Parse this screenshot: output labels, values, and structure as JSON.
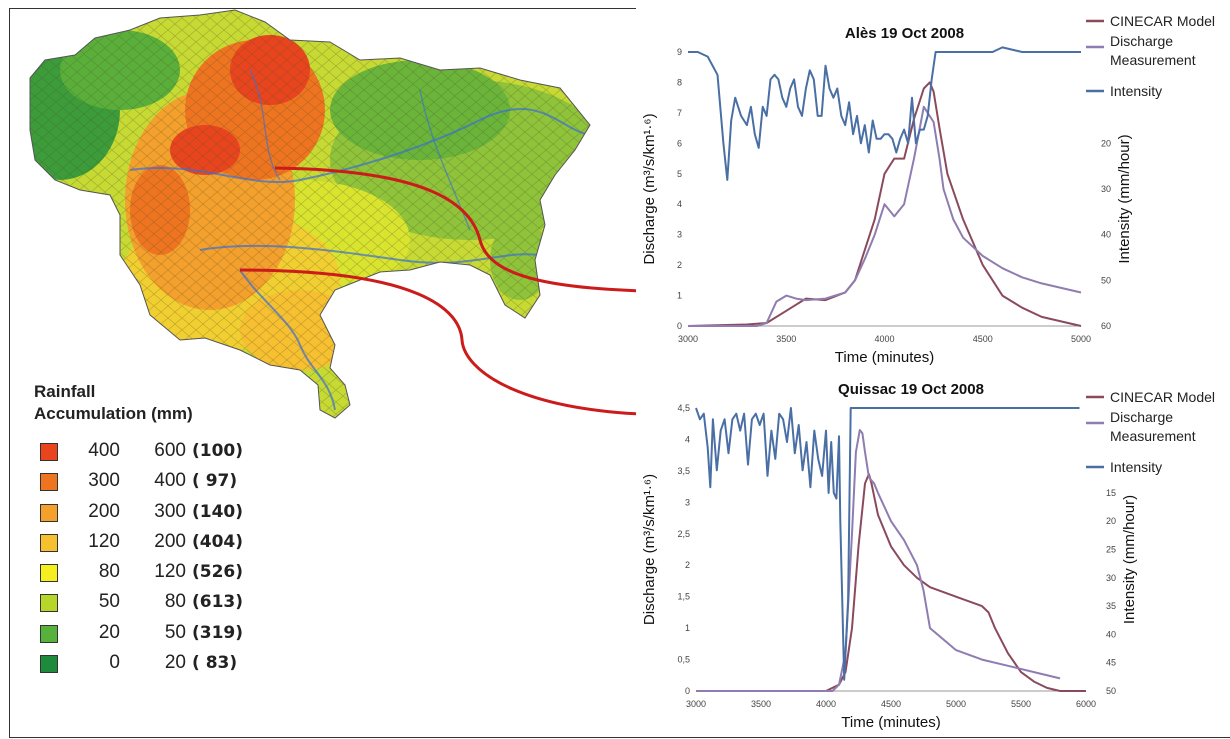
{
  "legend": {
    "title_line1": "Rainfall",
    "title_line2": "Accumulation  (mm)",
    "items": [
      {
        "low": "400",
        "high": "600",
        "count": "(100)",
        "color": "#e8451e"
      },
      {
        "low": "300",
        "high": "400",
        "count": "( 97)",
        "color": "#ee7420"
      },
      {
        "low": "200",
        "high": "300",
        "count": "(140)",
        "color": "#f4a02c"
      },
      {
        "low": "120",
        "high": "200",
        "count": "(404)",
        "color": "#f7c030"
      },
      {
        "low": "80",
        "high": "120",
        "count": "(526)",
        "color": "#f5ef20"
      },
      {
        "low": "50",
        "high": "80",
        "count": "(613)",
        "color": "#b7d62a"
      },
      {
        "low": "20",
        "high": "50",
        "count": "(319)",
        "color": "#57b13a"
      },
      {
        "low": "0",
        "high": "20",
        "count": "( 83)",
        "color": "#1e8a3c"
      }
    ]
  },
  "chart_data": [
    {
      "type": "line",
      "title": "Alès 19 Oct 2008",
      "xlabel": "Time (minutes)",
      "ylabel": "Discharge (m³/s/km¹·⁶)",
      "y2label": "Intensity  (mm/hour)",
      "xlim": [
        3000,
        5000
      ],
      "ylim": [
        0,
        9
      ],
      "y2lim": [
        0,
        60
      ],
      "y2_inverted": true,
      "xticks": [
        "3000",
        "3500",
        "4000",
        "4500",
        "5000"
      ],
      "yticks": [
        "0",
        "1",
        "2",
        "3",
        "4",
        "5",
        "6",
        "7",
        "8",
        "9"
      ],
      "y2ticks": [
        "20",
        "30",
        "40",
        "50",
        "60"
      ],
      "legend_position": "top-right",
      "series": [
        {
          "name": "CINECAR Model",
          "color": "#8b4a5c",
          "axis": "y",
          "x": [
            3000,
            3300,
            3400,
            3500,
            3550,
            3600,
            3700,
            3800,
            3850,
            3900,
            3950,
            4000,
            4050,
            4100,
            4150,
            4200,
            4230,
            4250,
            4280,
            4320,
            4400,
            4500,
            4600,
            4700,
            4800,
            5000
          ],
          "y": [
            0,
            0.05,
            0.1,
            0.5,
            0.7,
            0.9,
            0.85,
            1.1,
            1.5,
            2.5,
            3.5,
            5.0,
            5.5,
            5.5,
            6.8,
            7.8,
            8.0,
            7.7,
            6.5,
            5.0,
            3.5,
            2.0,
            1.0,
            0.6,
            0.3,
            0
          ]
        },
        {
          "name": "Discharge Measurement",
          "color": "#8f7cb0",
          "axis": "y",
          "x": [
            3000,
            3350,
            3400,
            3450,
            3500,
            3550,
            3600,
            3700,
            3800,
            3850,
            3900,
            3950,
            4000,
            4050,
            4100,
            4150,
            4200,
            4250,
            4280,
            4300,
            4350,
            4400,
            4450,
            4500,
            4600,
            4700,
            4800,
            5000
          ],
          "y": [
            0,
            0,
            0.1,
            0.8,
            1.0,
            0.9,
            0.85,
            0.9,
            1.1,
            1.5,
            2.2,
            3.0,
            4.0,
            3.6,
            4.0,
            5.5,
            7.2,
            6.7,
            5.5,
            4.5,
            3.5,
            2.9,
            2.6,
            2.3,
            1.9,
            1.6,
            1.4,
            1.1
          ]
        },
        {
          "name": "Intensity",
          "color": "#4a6fa5",
          "axis": "y2",
          "x": [
            3000,
            3050,
            3100,
            3150,
            3180,
            3200,
            3220,
            3240,
            3270,
            3300,
            3320,
            3340,
            3360,
            3380,
            3400,
            3420,
            3440,
            3460,
            3480,
            3500,
            3520,
            3540,
            3560,
            3580,
            3600,
            3620,
            3640,
            3660,
            3680,
            3700,
            3720,
            3740,
            3760,
            3780,
            3800,
            3820,
            3840,
            3860,
            3880,
            3900,
            3920,
            3940,
            3960,
            3980,
            4000,
            4020,
            4040,
            4060,
            4080,
            4100,
            4120,
            4140,
            4160,
            4180,
            4200,
            4220,
            4240,
            4260,
            4300,
            4400,
            4500,
            4550,
            4600,
            4700,
            5000
          ],
          "y": [
            0,
            0,
            1,
            5,
            20,
            28,
            15,
            10,
            14,
            16,
            12,
            18,
            21,
            12,
            14,
            6,
            5,
            6,
            10,
            12,
            8,
            6,
            12,
            14,
            8,
            4,
            6,
            14,
            14,
            3,
            8,
            10,
            8,
            14,
            16,
            11,
            18,
            14,
            20,
            16,
            22,
            15,
            19,
            19,
            18,
            18,
            19,
            22,
            19,
            17,
            20,
            10,
            20,
            17,
            17,
            14,
            6,
            0,
            0,
            0,
            0,
            0,
            -1,
            0,
            0
          ]
        }
      ]
    },
    {
      "type": "line",
      "title": "Quissac 19 Oct 2008",
      "xlabel": "Time (minutes)",
      "ylabel": "Discharge (m³/s/km¹·⁶)",
      "y2label": "Intensity  (mm/hour)",
      "xlim": [
        3000,
        6000
      ],
      "ylim": [
        0,
        4.5
      ],
      "y2lim": [
        0,
        50
      ],
      "y2_inverted": true,
      "xticks": [
        "3000",
        "3500",
        "4000",
        "4500",
        "5000",
        "5500",
        "6000"
      ],
      "yticks": [
        "0",
        "0,5",
        "1",
        "1,5",
        "2",
        "2,5",
        "3",
        "3,5",
        "4",
        "4,5"
      ],
      "y2ticks": [
        "15",
        "20",
        "25",
        "30",
        "35",
        "40",
        "45",
        "50"
      ],
      "legend_position": "top-right",
      "series": [
        {
          "name": "CINECAR Model",
          "color": "#8b4a5c",
          "axis": "y",
          "x": [
            3000,
            3900,
            4000,
            4100,
            4150,
            4200,
            4250,
            4300,
            4330,
            4350,
            4400,
            4500,
            4600,
            4700,
            4800,
            5000,
            5200,
            5250,
            5300,
            5400,
            5500,
            5600,
            5700,
            5800,
            6000
          ],
          "y": [
            0,
            0,
            0,
            0.1,
            0.3,
            1.0,
            2.3,
            3.3,
            3.45,
            3.3,
            2.8,
            2.3,
            2.0,
            1.8,
            1.65,
            1.5,
            1.35,
            1.25,
            1.0,
            0.6,
            0.3,
            0.15,
            0.05,
            0,
            0
          ]
        },
        {
          "name": "Discharge Measurement",
          "color": "#8f7cb0",
          "axis": "y",
          "x": [
            3000,
            4050,
            4100,
            4150,
            4200,
            4230,
            4260,
            4280,
            4300,
            4330,
            4370,
            4400,
            4500,
            4600,
            4700,
            4750,
            4800,
            5000,
            5200,
            5400,
            5600,
            5800
          ],
          "y": [
            0,
            0,
            0.1,
            0.6,
            2.5,
            3.8,
            4.15,
            4.1,
            3.8,
            3.4,
            3.3,
            3.15,
            2.7,
            2.4,
            2.0,
            1.6,
            1.0,
            0.65,
            0.5,
            0.4,
            0.3,
            0.2
          ]
        },
        {
          "name": "Intensity",
          "color": "#4a6fa5",
          "axis": "y2",
          "x": [
            3000,
            3030,
            3060,
            3090,
            3110,
            3130,
            3160,
            3190,
            3220,
            3250,
            3280,
            3310,
            3340,
            3370,
            3400,
            3430,
            3460,
            3490,
            3520,
            3550,
            3580,
            3610,
            3640,
            3670,
            3700,
            3730,
            3760,
            3790,
            3820,
            3850,
            3880,
            3910,
            3940,
            3970,
            4000,
            4020,
            4040,
            4060,
            4080,
            4100,
            4110,
            4140,
            4170,
            4190,
            4210,
            4300,
            5000,
            5950
          ],
          "y": [
            0,
            2,
            1,
            7,
            14,
            2,
            11,
            4,
            2,
            8,
            2,
            1,
            4,
            1,
            10,
            2,
            1,
            3,
            1,
            12,
            4,
            9,
            1,
            2,
            6,
            0,
            8,
            3,
            11,
            6,
            14,
            4,
            9,
            12,
            4,
            15,
            6,
            15,
            16,
            5,
            20,
            48,
            34,
            0,
            0,
            0,
            0,
            0
          ]
        }
      ]
    }
  ]
}
